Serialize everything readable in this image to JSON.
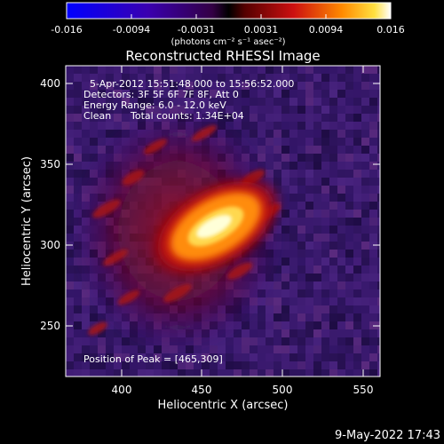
{
  "colorbar": {
    "ticks": [
      "-0.016",
      "-0.0094",
      "-0.0031",
      "0.0031",
      "0.0094",
      "0.016"
    ],
    "units": "(photons cm⁻² s⁻¹ asec⁻²)"
  },
  "title": "Reconstructed RHESSI Image",
  "info": {
    "time_range": "5-Apr-2012 15:51:48.000 to 15:56:52.000",
    "detectors": "Detectors: 3F 5F 6F 7F 8F, Att 0",
    "energy": "Energy Range: 6.0 - 12.0 keV",
    "method": "Clean",
    "counts": "Total counts: 1.34E+04",
    "peak": "Position of Peak = [465,309]"
  },
  "axes": {
    "xlabel": "Heliocentric X (arcsec)",
    "ylabel": "Heliocentric Y (arcsec)",
    "xticks": [
      "400",
      "450",
      "500",
      "550"
    ],
    "yticks": [
      "400",
      "350",
      "300",
      "250"
    ]
  },
  "footer": {
    "date": "9-May-2022 17:43"
  },
  "colors": {
    "background": "#000000",
    "frame": "#ffffff",
    "field": "#3a1a6e",
    "source_core": "#ffffd8"
  }
}
